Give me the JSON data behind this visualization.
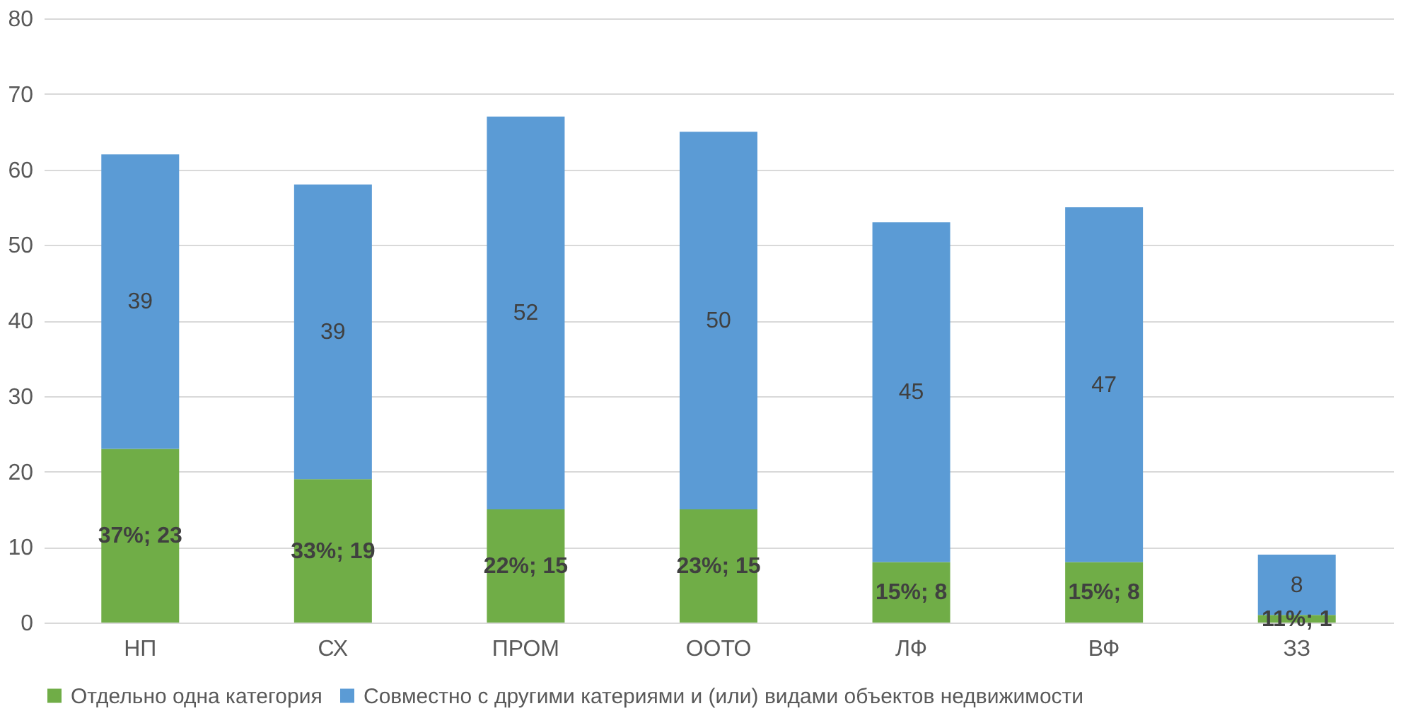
{
  "chart_data": {
    "type": "bar",
    "stacked": true,
    "categories": [
      "НП",
      "СХ",
      "ПРОМ",
      "ООТО",
      "ЛФ",
      "ВФ",
      "ЗЗ"
    ],
    "series": [
      {
        "name": "Отдельно одна категория",
        "color": "#70ad47",
        "values": [
          23,
          19,
          15,
          15,
          8,
          8,
          1
        ],
        "value_labels": [
          "37%; 23",
          "33%; 19",
          "22%; 15",
          "23%; 15",
          "15%; 8",
          "15%; 8",
          "11%; 1"
        ]
      },
      {
        "name": "Совместно с другими катериями и (или) видами объектов недвижимости",
        "color": "#5b9bd5",
        "values": [
          39,
          39,
          52,
          50,
          45,
          47,
          8
        ],
        "value_labels": [
          "39",
          "39",
          "52",
          "50",
          "45",
          "47",
          "8"
        ]
      }
    ],
    "ylim": [
      0,
      80
    ],
    "yticks": [
      0,
      10,
      20,
      30,
      40,
      50,
      60,
      70,
      80
    ],
    "grid": "y",
    "legend": "bottom"
  }
}
